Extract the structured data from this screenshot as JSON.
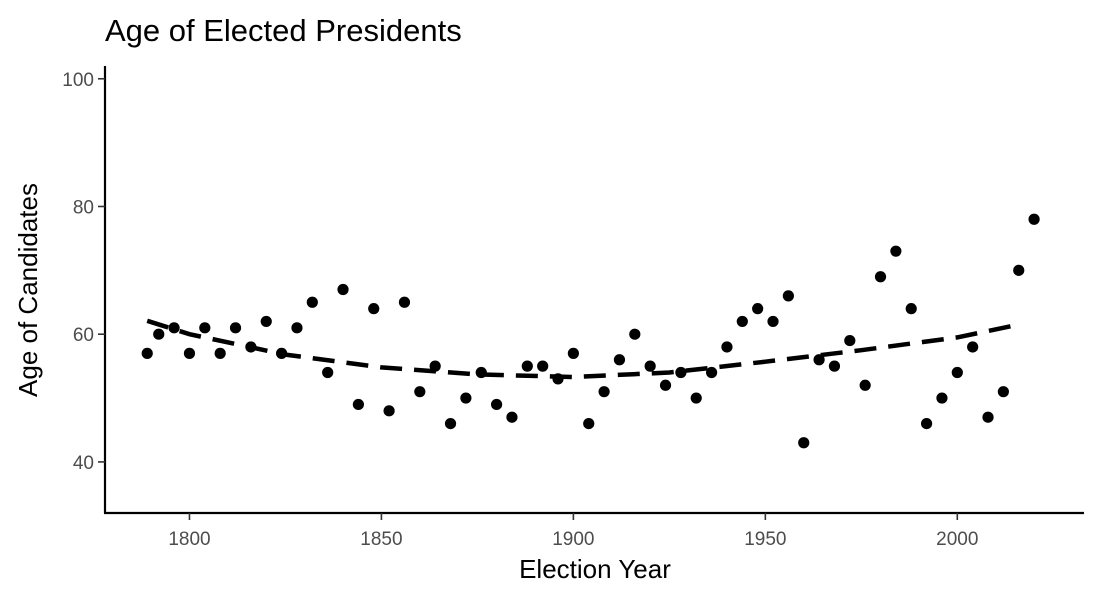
{
  "chart_data": {
    "type": "scatter",
    "title": "Age of Elected Presidents",
    "xlabel": "Election Year",
    "ylabel": "Age of Candidates",
    "xlim": [
      1778,
      2033
    ],
    "ylim": [
      32,
      102
    ],
    "x_ticks": [
      1800,
      1850,
      1900,
      1950,
      2000
    ],
    "y_ticks": [
      40,
      60,
      80,
      100
    ],
    "grid": false,
    "legend": "none",
    "series": [
      {
        "points": [
          {
            "x": 1789,
            "y": 57
          },
          {
            "x": 1792,
            "y": 60
          },
          {
            "x": 1796,
            "y": 61
          },
          {
            "x": 1800,
            "y": 57
          },
          {
            "x": 1804,
            "y": 61
          },
          {
            "x": 1808,
            "y": 57
          },
          {
            "x": 1812,
            "y": 61
          },
          {
            "x": 1816,
            "y": 58
          },
          {
            "x": 1820,
            "y": 62
          },
          {
            "x": 1824,
            "y": 57
          },
          {
            "x": 1828,
            "y": 61
          },
          {
            "x": 1832,
            "y": 65
          },
          {
            "x": 1836,
            "y": 54
          },
          {
            "x": 1840,
            "y": 67
          },
          {
            "x": 1844,
            "y": 49
          },
          {
            "x": 1848,
            "y": 64
          },
          {
            "x": 1852,
            "y": 48
          },
          {
            "x": 1856,
            "y": 65
          },
          {
            "x": 1860,
            "y": 51
          },
          {
            "x": 1864,
            "y": 55
          },
          {
            "x": 1868,
            "y": 46
          },
          {
            "x": 1872,
            "y": 50
          },
          {
            "x": 1876,
            "y": 54
          },
          {
            "x": 1880,
            "y": 49
          },
          {
            "x": 1884,
            "y": 47
          },
          {
            "x": 1888,
            "y": 55
          },
          {
            "x": 1892,
            "y": 55
          },
          {
            "x": 1896,
            "y": 53
          },
          {
            "x": 1900,
            "y": 57
          },
          {
            "x": 1904,
            "y": 46
          },
          {
            "x": 1908,
            "y": 51
          },
          {
            "x": 1912,
            "y": 56
          },
          {
            "x": 1916,
            "y": 60
          },
          {
            "x": 1920,
            "y": 55
          },
          {
            "x": 1924,
            "y": 52
          },
          {
            "x": 1928,
            "y": 54
          },
          {
            "x": 1932,
            "y": 50
          },
          {
            "x": 1936,
            "y": 54
          },
          {
            "x": 1940,
            "y": 58
          },
          {
            "x": 1944,
            "y": 62
          },
          {
            "x": 1948,
            "y": 64
          },
          {
            "x": 1952,
            "y": 62
          },
          {
            "x": 1956,
            "y": 66
          },
          {
            "x": 1960,
            "y": 43
          },
          {
            "x": 1964,
            "y": 56
          },
          {
            "x": 1968,
            "y": 55
          },
          {
            "x": 1972,
            "y": 59
          },
          {
            "x": 1976,
            "y": 52
          },
          {
            "x": 1980,
            "y": 69
          },
          {
            "x": 1984,
            "y": 73
          },
          {
            "x": 1988,
            "y": 64
          },
          {
            "x": 1992,
            "y": 46
          },
          {
            "x": 1996,
            "y": 50
          },
          {
            "x": 2000,
            "y": 54
          },
          {
            "x": 2004,
            "y": 58
          },
          {
            "x": 2008,
            "y": 47
          },
          {
            "x": 2012,
            "y": 51
          },
          {
            "x": 2016,
            "y": 70
          },
          {
            "x": 2020,
            "y": 78
          }
        ]
      }
    ],
    "trend_line": {
      "style": "dashed",
      "points": [
        {
          "x": 1789,
          "y": 62.1
        },
        {
          "x": 1800,
          "y": 60.0
        },
        {
          "x": 1825,
          "y": 56.8
        },
        {
          "x": 1850,
          "y": 54.8
        },
        {
          "x": 1875,
          "y": 53.7
        },
        {
          "x": 1900,
          "y": 53.3
        },
        {
          "x": 1925,
          "y": 54.0
        },
        {
          "x": 1950,
          "y": 55.7
        },
        {
          "x": 1975,
          "y": 57.5
        },
        {
          "x": 2000,
          "y": 59.5
        },
        {
          "x": 2016,
          "y": 61.5
        }
      ]
    }
  }
}
